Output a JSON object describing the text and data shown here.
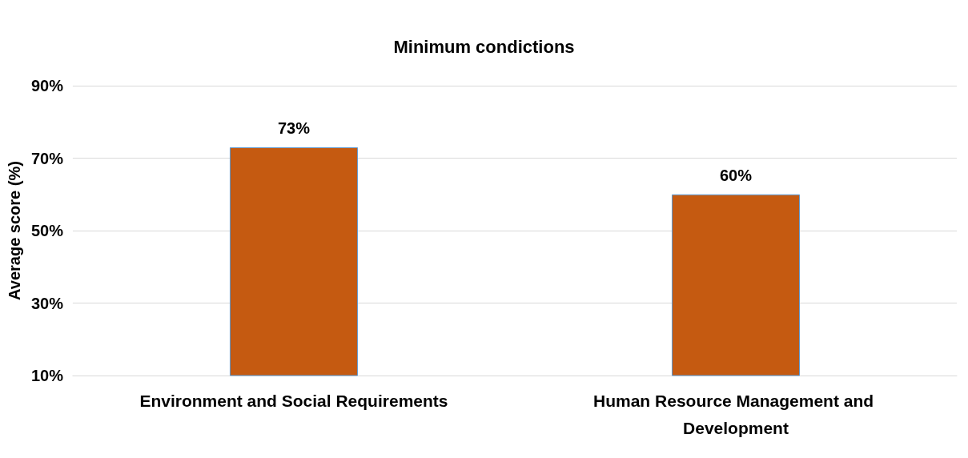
{
  "chart_data": {
    "type": "bar",
    "title": "Minimum condictions",
    "ylabel": "Average score (%)",
    "categories": [
      "Environment and Social Requirements",
      "Human Resource Management and Development"
    ],
    "values": [
      73,
      60
    ],
    "color": "#c55a11",
    "value_labels": [
      "73%",
      "60%"
    ],
    "ylim": [
      10,
      90
    ],
    "yticks": [
      {
        "value": 10,
        "label": "10%"
      },
      {
        "value": 30,
        "label": "30%"
      },
      {
        "value": 50,
        "label": "50%"
      },
      {
        "value": 70,
        "label": "70%"
      },
      {
        "value": 90,
        "label": "90%"
      }
    ],
    "grid": true
  }
}
